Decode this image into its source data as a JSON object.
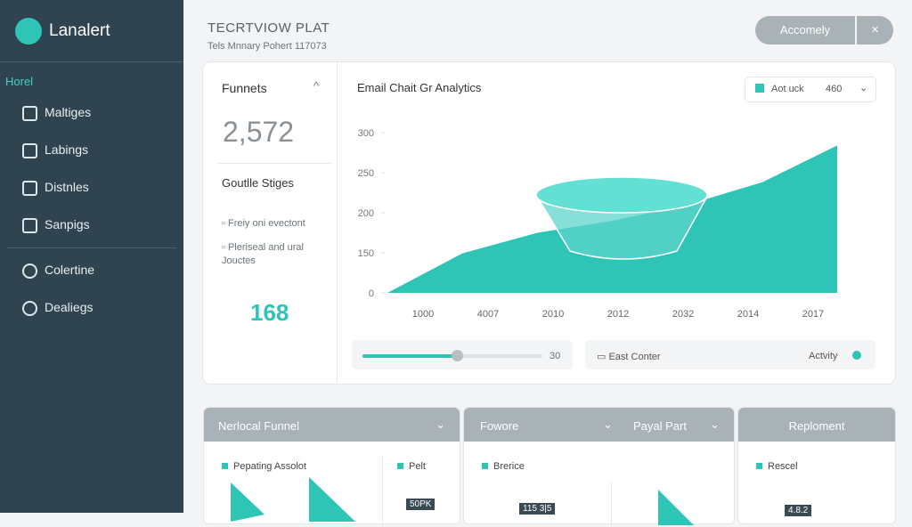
{
  "sidebar": {
    "brand": "Lanalert",
    "section": "Horel",
    "items": [
      "Maltiges",
      "Labings",
      "Distnles",
      "Sanpigs"
    ],
    "items2": [
      "Colertine",
      "Dealiegs"
    ]
  },
  "header": {
    "title": "TECRTVIOW PLAT",
    "subtitle": "Tels Mnnary Pohert 117073",
    "button": "Accomely",
    "close": "×"
  },
  "left_panel": {
    "title": "Funnets",
    "big_number": "2,572",
    "section": "Goutlle Stiges",
    "items": [
      "Freiy oni evectont",
      "Pleriseal and ural Jouctes"
    ],
    "count": "168"
  },
  "chart": {
    "type": "area",
    "title": "Email Chait Gr Analytics",
    "control_label": "Aot uck",
    "control_value": "460",
    "categories": [
      "1000",
      "4007",
      "2010",
      "2012",
      "2032",
      "2014",
      "2017"
    ],
    "values": [
      0,
      148,
      175,
      190,
      210,
      238,
      284
    ],
    "color": "#2ec4b6",
    "yticks": [
      300,
      250,
      200,
      150,
      0
    ]
  },
  "controls": {
    "slider_value": "30",
    "filter": "East Conter",
    "status": "Actvity"
  },
  "cards": [
    {
      "header": "Nerlocal Funnel",
      "items": [
        "Pepating Assolot",
        "Pelt"
      ],
      "badge": "50PK"
    },
    {
      "header": "Fowore",
      "header2": "Payal Part",
      "items": [
        "Brerice"
      ],
      "badge": "115 3|5"
    },
    {
      "header": "Reploment",
      "items": [
        "Rescel"
      ],
      "badge": "4.8.2"
    }
  ]
}
